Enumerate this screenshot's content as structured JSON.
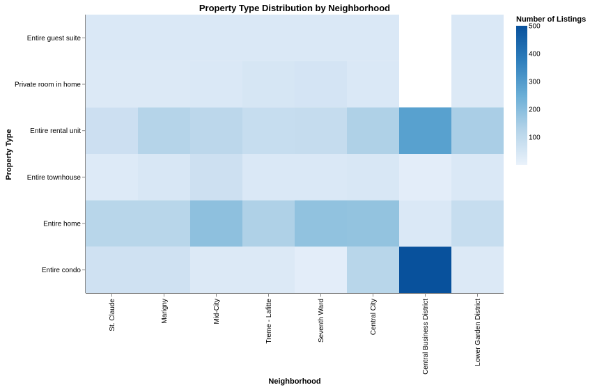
{
  "chart_data": {
    "type": "heatmap",
    "title": "Property Type Distribution by Neighborhood",
    "xlabel": "Neighborhood",
    "ylabel": "Property Type",
    "x_categories": [
      "St. Claude",
      "Marigny",
      "Mid-City",
      "Treme - Lafitte",
      "Seventh Ward",
      "Central City",
      "Central Business District",
      "Lower Garden District"
    ],
    "y_categories": [
      "Entire guest suite",
      "Private room in home",
      "Entire rental unit",
      "Entire townhouse",
      "Entire home",
      "Entire condo"
    ],
    "values": [
      [
        45,
        45,
        45,
        45,
        45,
        45,
        null,
        45
      ],
      [
        40,
        40,
        45,
        55,
        60,
        45,
        null,
        40
      ],
      [
        85,
        150,
        130,
        100,
        105,
        160,
        330,
        170
      ],
      [
        35,
        50,
        80,
        45,
        45,
        50,
        20,
        45
      ],
      [
        140,
        140,
        220,
        160,
        215,
        210,
        45,
        100
      ],
      [
        75,
        75,
        40,
        40,
        20,
        140,
        500,
        40
      ]
    ],
    "legend": {
      "title": "Number of Listings",
      "ticks": [
        100,
        200,
        300,
        400,
        500
      ],
      "domain": [
        0,
        500
      ],
      "color_low": "#cfe1f2",
      "color_high": "#08519c"
    },
    "grid": false
  }
}
